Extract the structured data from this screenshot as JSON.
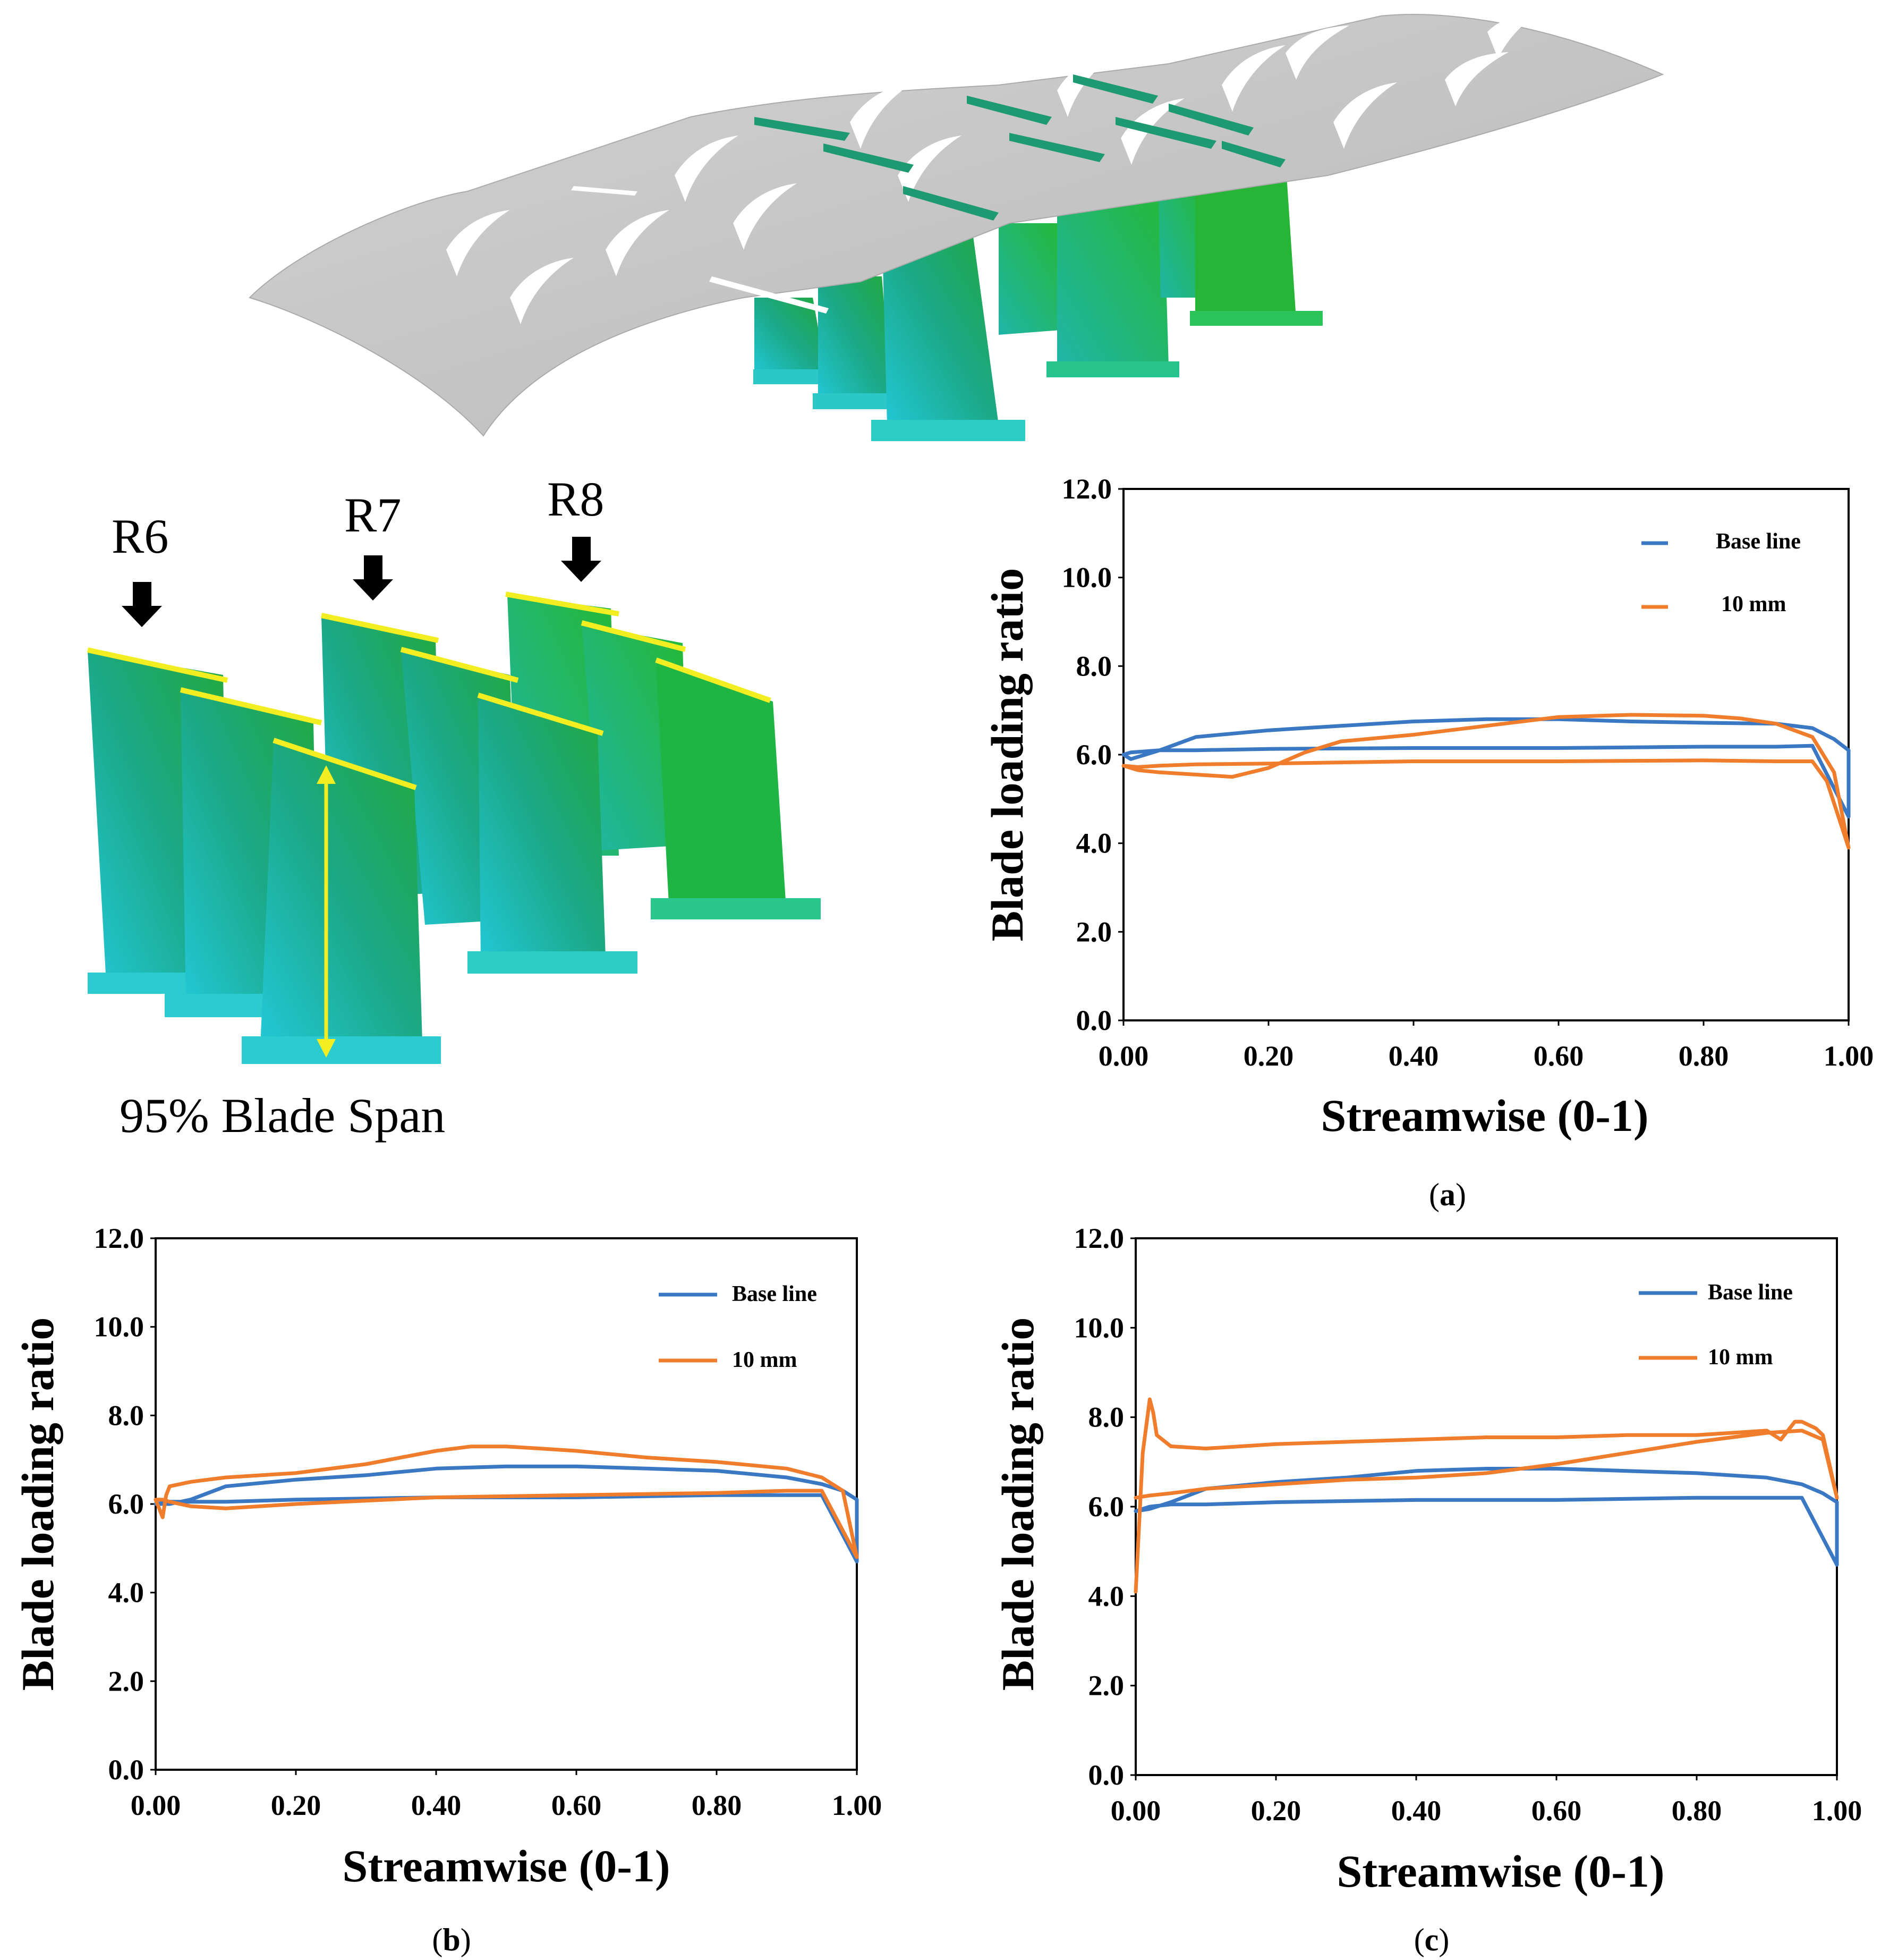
{
  "colors": {
    "baseline": "#3a78c4",
    "mm10": "#ef7d2c",
    "plane": "#c6c6c6",
    "blade": "#1fb57c",
    "highlight": "#f2ee22"
  },
  "illustration": {
    "row_labels": [
      "R6",
      "R7",
      "R8"
    ],
    "span_label": "95% Blade Span"
  },
  "chart_data": [
    {
      "type": "line",
      "panel": "a",
      "caption": "a",
      "xlabel": "Streamwise (0-1)",
      "ylabel": "Blade loading ratio",
      "xlim": [
        0,
        1
      ],
      "ylim": [
        0,
        12
      ],
      "xticks": [
        "0.00",
        "0.20",
        "0.40",
        "0.60",
        "0.80",
        "1.00"
      ],
      "yticks": [
        "0.0",
        "2.0",
        "4.0",
        "6.0",
        "8.0",
        "10.0",
        "12.0"
      ],
      "series": [
        {
          "name": "Base line",
          "key": "baseline",
          "x": [
            0,
            0.01,
            0.05,
            0.1,
            0.2,
            0.3,
            0.4,
            0.5,
            0.6,
            0.7,
            0.8,
            0.9,
            0.95,
            0.98,
            1.0,
            1.0,
            0.95,
            0.9,
            0.8,
            0.6,
            0.4,
            0.2,
            0.1,
            0.05,
            0.01,
            0
          ],
          "y": [
            6.0,
            5.9,
            6.1,
            6.4,
            6.55,
            6.65,
            6.75,
            6.8,
            6.8,
            6.75,
            6.72,
            6.7,
            6.6,
            6.35,
            6.1,
            4.6,
            6.2,
            6.18,
            6.18,
            6.15,
            6.15,
            6.13,
            6.1,
            6.1,
            6.05,
            6.0
          ]
        },
        {
          "name": "10 mm",
          "key": "mm10",
          "x": [
            0,
            0.02,
            0.05,
            0.1,
            0.15,
            0.2,
            0.25,
            0.3,
            0.4,
            0.5,
            0.6,
            0.7,
            0.8,
            0.85,
            0.9,
            0.95,
            0.98,
            1.0,
            1.0,
            0.97,
            0.95,
            0.9,
            0.8,
            0.6,
            0.4,
            0.2,
            0.1,
            0.05,
            0.02,
            0
          ],
          "y": [
            5.75,
            5.65,
            5.6,
            5.55,
            5.5,
            5.7,
            6.05,
            6.3,
            6.45,
            6.65,
            6.85,
            6.9,
            6.88,
            6.82,
            6.7,
            6.4,
            5.6,
            3.9,
            3.9,
            5.4,
            5.85,
            5.85,
            5.87,
            5.85,
            5.85,
            5.8,
            5.78,
            5.75,
            5.72,
            5.75
          ]
        }
      ],
      "legend": [
        "Base line",
        "10 mm"
      ]
    },
    {
      "type": "line",
      "panel": "b",
      "caption": "b",
      "xlabel": "Streamwise (0-1)",
      "ylabel": "Blade loading ratio",
      "xlim": [
        0,
        1
      ],
      "ylim": [
        0,
        12
      ],
      "xticks": [
        "0.00",
        "0.20",
        "0.40",
        "0.60",
        "0.80",
        "1.00"
      ],
      "yticks": [
        "0.0",
        "2.0",
        "4.0",
        "6.0",
        "8.0",
        "10.0",
        "12.0"
      ],
      "series": [
        {
          "name": "Base line",
          "key": "baseline",
          "x": [
            0,
            0.02,
            0.05,
            0.1,
            0.2,
            0.3,
            0.4,
            0.5,
            0.6,
            0.7,
            0.8,
            0.9,
            0.95,
            0.98,
            1.0,
            1.0,
            0.95,
            0.9,
            0.8,
            0.6,
            0.4,
            0.2,
            0.1,
            0.05,
            0.02,
            0
          ],
          "y": [
            6.0,
            6.0,
            6.1,
            6.4,
            6.55,
            6.65,
            6.8,
            6.85,
            6.85,
            6.8,
            6.75,
            6.6,
            6.45,
            6.3,
            6.1,
            4.7,
            6.2,
            6.2,
            6.2,
            6.15,
            6.15,
            6.1,
            6.05,
            6.05,
            6.05,
            6.0
          ]
        },
        {
          "name": "10 mm",
          "key": "mm10",
          "x": [
            0,
            0.01,
            0.015,
            0.02,
            0.05,
            0.1,
            0.2,
            0.3,
            0.4,
            0.45,
            0.5,
            0.55,
            0.6,
            0.7,
            0.8,
            0.9,
            0.95,
            0.98,
            1.0,
            1.0,
            0.95,
            0.9,
            0.8,
            0.6,
            0.4,
            0.2,
            0.1,
            0.05,
            0.02,
            0.01,
            0
          ],
          "y": [
            6.1,
            5.7,
            6.2,
            6.4,
            6.5,
            6.6,
            6.7,
            6.9,
            7.2,
            7.3,
            7.3,
            7.25,
            7.2,
            7.05,
            6.95,
            6.8,
            6.6,
            6.3,
            4.8,
            4.8,
            6.3,
            6.3,
            6.25,
            6.2,
            6.15,
            6.0,
            5.9,
            5.95,
            6.05,
            6.1,
            6.1
          ]
        }
      ],
      "legend": [
        "Base line",
        "10 mm"
      ]
    },
    {
      "type": "line",
      "panel": "c",
      "caption": "c",
      "xlabel": "Streamwise (0-1)",
      "ylabel": "Blade loading ratio",
      "xlim": [
        0,
        1
      ],
      "ylim": [
        0,
        12
      ],
      "xticks": [
        "0.00",
        "0.20",
        "0.40",
        "0.60",
        "0.80",
        "1.00"
      ],
      "yticks": [
        "0.0",
        "2.0",
        "4.0",
        "6.0",
        "8.0",
        "10.0",
        "12.0"
      ],
      "series": [
        {
          "name": "Base line",
          "key": "baseline",
          "x": [
            0,
            0.02,
            0.05,
            0.1,
            0.2,
            0.3,
            0.4,
            0.5,
            0.6,
            0.7,
            0.8,
            0.9,
            0.95,
            0.98,
            1.0,
            1.0,
            0.95,
            0.9,
            0.8,
            0.6,
            0.4,
            0.2,
            0.1,
            0.05,
            0.02,
            0
          ],
          "y": [
            5.9,
            5.95,
            6.1,
            6.4,
            6.55,
            6.65,
            6.8,
            6.85,
            6.85,
            6.8,
            6.75,
            6.65,
            6.5,
            6.3,
            6.1,
            4.7,
            6.2,
            6.2,
            6.2,
            6.15,
            6.15,
            6.1,
            6.05,
            6.05,
            6.0,
            5.9
          ]
        },
        {
          "name": "10 mm",
          "key": "mm10",
          "x": [
            0,
            0.01,
            0.02,
            0.025,
            0.03,
            0.05,
            0.1,
            0.2,
            0.3,
            0.4,
            0.5,
            0.6,
            0.7,
            0.8,
            0.85,
            0.9,
            0.92,
            0.94,
            0.95,
            0.97,
            0.98,
            1.0,
            1.0,
            0.98,
            0.95,
            0.9,
            0.8,
            0.7,
            0.6,
            0.5,
            0.4,
            0.3,
            0.2,
            0.1,
            0.05,
            0.02,
            0
          ],
          "y": [
            4.1,
            7.2,
            8.4,
            8.1,
            7.6,
            7.35,
            7.3,
            7.4,
            7.45,
            7.5,
            7.55,
            7.55,
            7.6,
            7.6,
            7.65,
            7.7,
            7.5,
            7.9,
            7.9,
            7.75,
            7.6,
            6.2,
            6.2,
            7.5,
            7.7,
            7.65,
            7.45,
            7.2,
            6.95,
            6.75,
            6.65,
            6.6,
            6.5,
            6.4,
            6.3,
            6.25,
            6.2
          ]
        }
      ],
      "legend": [
        "Base line",
        "10 mm"
      ]
    }
  ]
}
